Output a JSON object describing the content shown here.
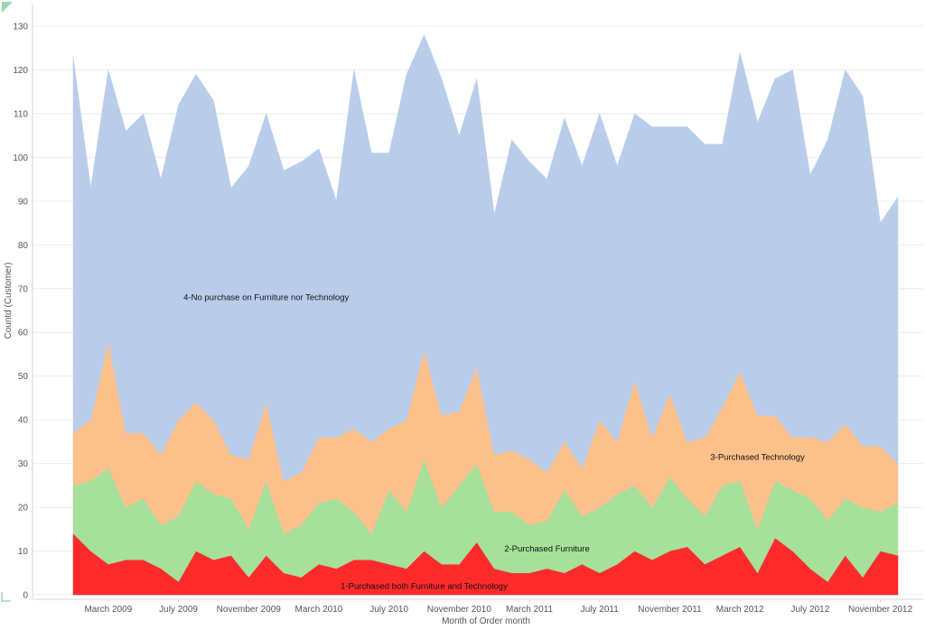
{
  "chart_data": {
    "type": "area",
    "stacked": true,
    "title": "",
    "xlabel": "Month of Order month",
    "ylabel": "Countd (Customer)",
    "ylim": [
      0,
      135
    ],
    "yticks": [
      0,
      10,
      20,
      30,
      40,
      50,
      60,
      70,
      80,
      90,
      100,
      110,
      120,
      130
    ],
    "months": [
      "2009-01",
      "2009-02",
      "2009-03",
      "2009-04",
      "2009-05",
      "2009-06",
      "2009-07",
      "2009-08",
      "2009-09",
      "2009-10",
      "2009-11",
      "2009-12",
      "2010-01",
      "2010-02",
      "2010-03",
      "2010-04",
      "2010-05",
      "2010-06",
      "2010-07",
      "2010-08",
      "2010-09",
      "2010-10",
      "2010-11",
      "2010-12",
      "2011-01",
      "2011-02",
      "2011-03",
      "2011-04",
      "2011-05",
      "2011-06",
      "2011-07",
      "2011-08",
      "2011-09",
      "2011-10",
      "2011-11",
      "2011-12",
      "2012-01",
      "2012-02",
      "2012-03",
      "2012-04",
      "2012-05",
      "2012-06",
      "2012-07",
      "2012-08",
      "2012-09",
      "2012-10",
      "2012-11",
      "2012-12"
    ],
    "x_tick_labels": [
      {
        "index": 2,
        "label": "March 2009"
      },
      {
        "index": 6,
        "label": "July 2009"
      },
      {
        "index": 10,
        "label": "November 2009"
      },
      {
        "index": 14,
        "label": "March 2010"
      },
      {
        "index": 18,
        "label": "July 2010"
      },
      {
        "index": 22,
        "label": "November 2010"
      },
      {
        "index": 26,
        "label": "March 2011"
      },
      {
        "index": 30,
        "label": "July 2011"
      },
      {
        "index": 34,
        "label": "November 2011"
      },
      {
        "index": 38,
        "label": "March 2012"
      },
      {
        "index": 42,
        "label": "July 2012"
      },
      {
        "index": 46,
        "label": "November 2012"
      }
    ],
    "series": [
      {
        "name": "1-Purchased both Furniture and Technology",
        "color": "#ff2a2a",
        "label_at": {
          "index": 20,
          "value": 2
        },
        "values": [
          14,
          10,
          7,
          8,
          8,
          6,
          3,
          10,
          8,
          9,
          4,
          9,
          5,
          4,
          7,
          6,
          8,
          8,
          7,
          6,
          10,
          7,
          7,
          12,
          6,
          5,
          5,
          6,
          5,
          7,
          5,
          7,
          10,
          8,
          10,
          11,
          7,
          9,
          11,
          5,
          13,
          10,
          6,
          3,
          9,
          4,
          10,
          9
        ]
      },
      {
        "name": "2-Purchased Furniture",
        "color": "#a6e09a",
        "label_at": {
          "index": 27,
          "value": 10.5
        },
        "values": [
          11,
          16,
          22,
          12,
          14,
          10,
          15,
          16,
          15,
          13,
          11,
          17,
          9,
          12,
          14,
          16,
          11,
          6,
          17,
          13,
          21,
          13,
          18,
          18,
          13,
          14,
          11,
          11,
          19,
          11,
          15,
          16,
          15,
          12,
          17,
          11,
          11,
          16,
          15,
          10,
          13,
          14,
          16,
          14,
          13,
          16,
          9,
          12
        ]
      },
      {
        "name": "3-Purchased Technology",
        "color": "#fcc08b",
        "label_at": {
          "index": 39,
          "value": 31.5
        },
        "values": [
          12,
          14,
          29,
          17,
          15,
          16,
          22,
          18,
          17,
          10,
          16,
          18,
          12,
          12,
          15,
          14,
          19,
          21,
          14,
          21,
          25,
          21,
          17,
          22,
          13,
          14,
          15,
          11,
          11,
          11,
          20,
          12,
          24,
          16,
          19,
          13,
          18,
          18,
          25,
          26,
          15,
          12,
          14,
          18,
          17,
          14,
          15,
          9
        ]
      },
      {
        "name": "4-No purchase on Furniture nor Technology",
        "color": "#b9cdea",
        "label_at": {
          "index": 11,
          "value": 68
        },
        "values": [
          86,
          53,
          62,
          69,
          73,
          63,
          72,
          75,
          73,
          61,
          67,
          66,
          71,
          71,
          66,
          54,
          82,
          66,
          63,
          79,
          72,
          77,
          63,
          66,
          55,
          71,
          68,
          67,
          74,
          69,
          70,
          63,
          61,
          71,
          61,
          72,
          67,
          60,
          73,
          67,
          77,
          84,
          60,
          69,
          81,
          80,
          51,
          61
        ]
      }
    ]
  }
}
